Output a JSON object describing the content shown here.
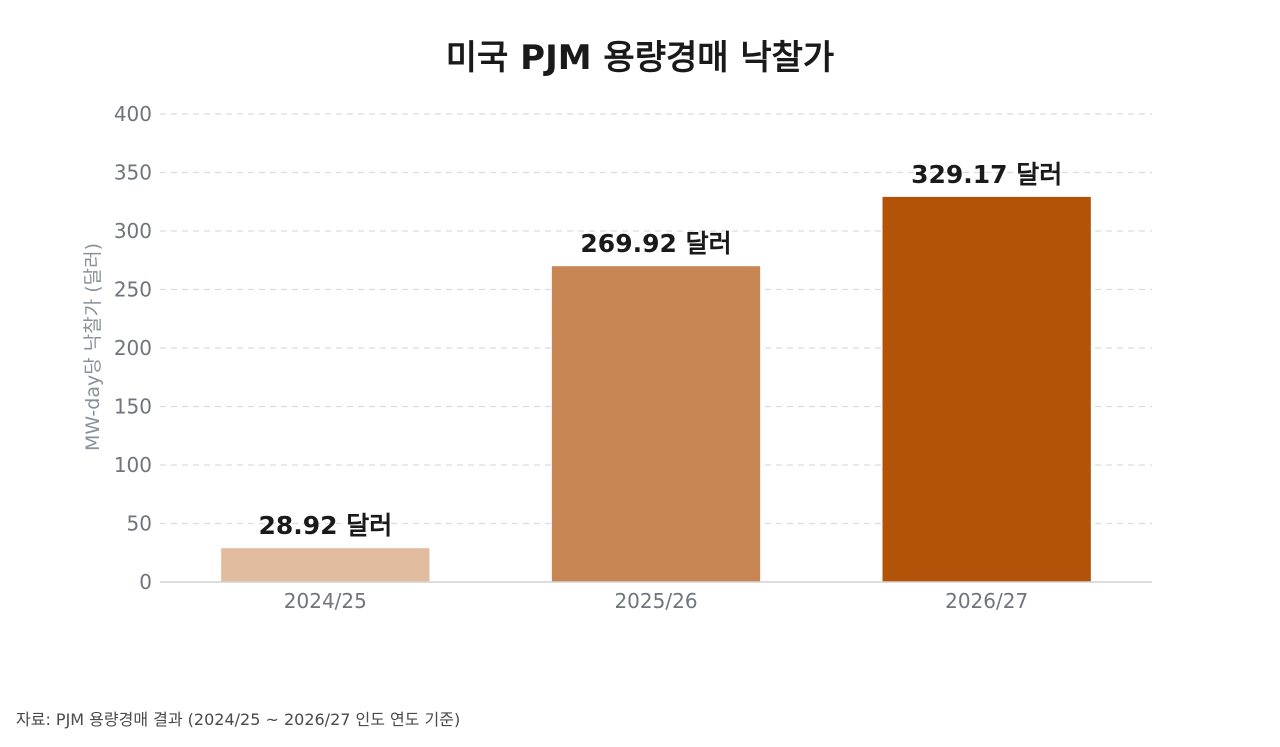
{
  "chart_data": {
    "type": "bar",
    "title": "미국 PJM 용량경매 낙찰가",
    "ylabel": "MW-day당 낙찰가 (달러)",
    "xlabel": "",
    "ylim": [
      0,
      400
    ],
    "yticks": [
      0,
      50,
      100,
      150,
      200,
      250,
      300,
      350,
      400
    ],
    "grid": true,
    "categories": [
      "2024/25",
      "2025/26",
      "2026/27"
    ],
    "values": [
      28.92,
      269.92,
      329.17
    ],
    "data_labels": [
      "28.92 달러",
      "269.92 달러",
      "329.17 달러"
    ],
    "colors": [
      "#e2bc9f",
      "#c78654",
      "#b15309"
    ]
  },
  "source": "자료: PJM 용량경매 결과 (2024/25 ~ 2026/27 인도 연도 기준)"
}
